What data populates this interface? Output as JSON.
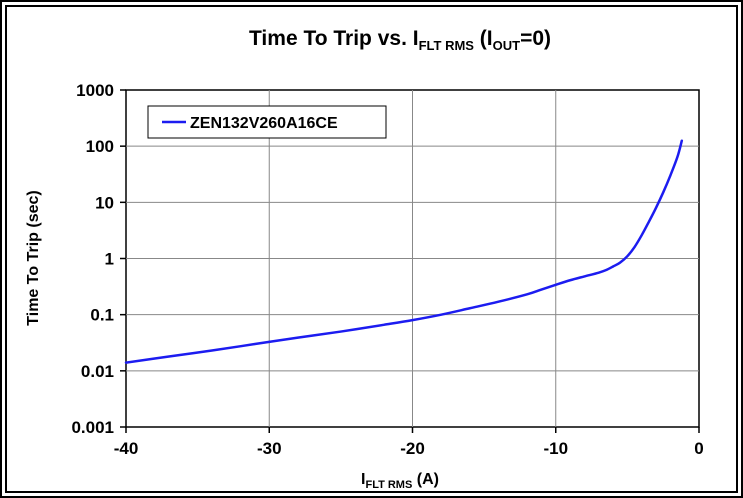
{
  "chart_data": {
    "type": "line",
    "title": {
      "main": "Time To Trip vs. I",
      "main_sub": "FLT RMS",
      "paren_open": " (I",
      "paren_sub": "OUT",
      "paren_close": "=0)"
    },
    "xlabel": {
      "main": "I",
      "sub": "FLT RMS",
      "unit": " (A)"
    },
    "ylabel": "Time To Trip (sec)",
    "x_ticks": [
      "-40",
      "-30",
      "-20",
      "-10",
      "0"
    ],
    "y_ticks": [
      "0.001",
      "0.01",
      "0.1",
      "1",
      "10",
      "100",
      "1000"
    ],
    "xlim": [
      -40,
      0
    ],
    "ylim": [
      0.001,
      1000
    ],
    "y_scale": "log",
    "grid": true,
    "legend_position": "top-left",
    "series": [
      {
        "name": "ZEN132V260A16CE",
        "color": "#1c1cf0",
        "x": [
          -40,
          -37,
          -34,
          -31,
          -28,
          -25,
          -22,
          -20,
          -18,
          -16,
          -14,
          -12,
          -11,
          -10,
          -9,
          -8,
          -7,
          -6.5,
          -6,
          -5.5,
          -5,
          -4.5,
          -4,
          -3.5,
          -3,
          -2.5,
          -2,
          -1.5,
          -1.2
        ],
        "y": [
          0.014,
          0.018,
          0.023,
          0.03,
          0.039,
          0.05,
          0.066,
          0.08,
          0.1,
          0.13,
          0.17,
          0.23,
          0.28,
          0.34,
          0.41,
          0.48,
          0.56,
          0.62,
          0.72,
          0.85,
          1.1,
          1.6,
          2.6,
          4.5,
          8,
          15,
          30,
          65,
          125
        ]
      }
    ]
  }
}
